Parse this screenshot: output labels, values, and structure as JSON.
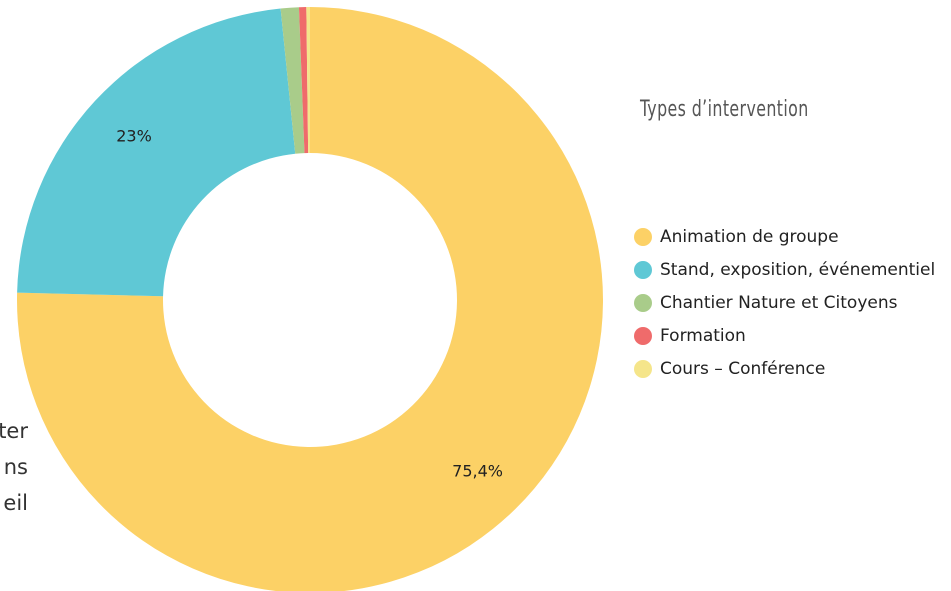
{
  "chart_data": {
    "type": "donut",
    "title": "Types d’intervention",
    "categories": [
      "Animation de groupe",
      "Stand, exposition, événementiel",
      "Chantier Nature et Citoyens",
      "Formation",
      "Cours – Conférence"
    ],
    "values": [
      75.4,
      23,
      1.0,
      0.4,
      0.2
    ],
    "value_labels": [
      "75,4%",
      "23%",
      null,
      null,
      null
    ],
    "colors": [
      "#fcd166",
      "#5fc8d5",
      "#a9cc8a",
      "#ef6b6b",
      "#f5e58a"
    ]
  },
  "background_text": [
    "ter",
    "ns",
    "eil"
  ]
}
